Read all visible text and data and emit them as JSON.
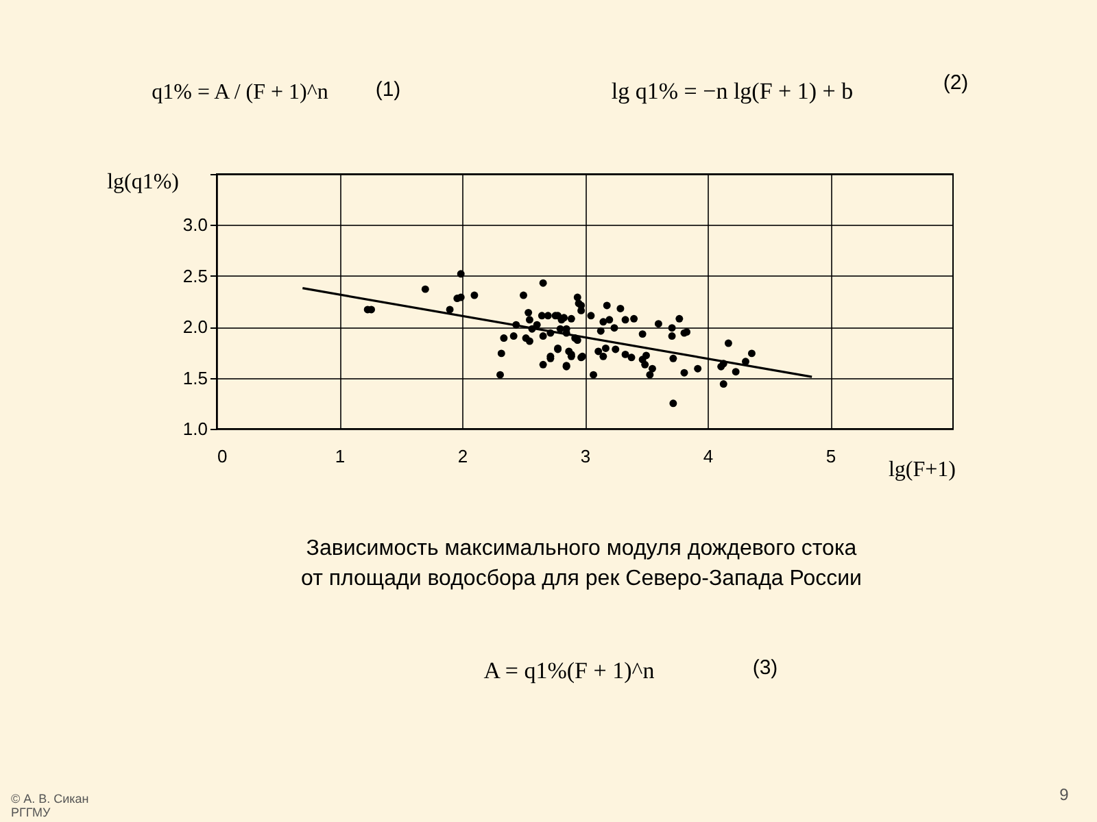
{
  "chart_data": {
    "type": "scatter",
    "title": "Зависимость максимального модуля дождевого стока от площади водосбора для рек Северо-Запада России",
    "xlabel": "lg(F+1)",
    "ylabel": "lg(q1%)",
    "xlim": [
      0,
      6
    ],
    "xticks": [
      0,
      1,
      2,
      3,
      4,
      5
    ],
    "ylim": [
      1.0,
      3.5
    ],
    "yticks": [
      {
        "value": 1.0,
        "label": "1.0"
      },
      {
        "value": 1.5,
        "label": "1.5"
      },
      {
        "value": 2.0,
        "label": "2.0"
      },
      {
        "value": 2.5,
        "label": "2.5"
      },
      {
        "value": 3.0,
        "label": "3.0"
      },
      {
        "value": 3.5,
        "label": null
      }
    ],
    "grid": true,
    "marker": "circle",
    "series": [
      {
        "color": "#000000",
        "x": [
          1.23,
          1.26,
          1.7,
          1.9,
          1.96,
          1.99,
          1.99,
          2.1,
          2.31,
          2.32,
          2.34,
          2.42,
          2.5,
          2.44,
          2.54,
          2.55,
          2.57,
          2.52,
          2.55,
          2.66,
          2.65,
          2.7,
          2.76,
          2.61,
          2.66,
          2.72,
          2.66,
          2.72,
          2.78,
          2.81,
          2.85,
          2.87,
          2.85,
          2.89,
          2.94,
          2.95,
          2.92,
          2.98,
          3.05,
          3.07,
          3.11,
          2.97,
          2.97,
          2.78,
          2.83,
          2.89,
          2.8,
          2.85,
          2.94,
          2.89,
          2.72,
          2.78,
          2.85,
          2.97,
          3.15,
          3.17,
          3.13,
          3.15,
          3.2,
          3.18,
          3.24,
          3.25,
          3.29,
          3.33,
          3.4,
          3.33,
          3.38,
          3.47,
          3.47,
          3.5,
          3.49,
          3.55,
          3.53,
          3.6,
          3.71,
          3.71,
          3.77,
          3.72,
          3.81,
          3.83,
          3.81,
          3.92,
          3.72,
          4.17,
          4.11,
          4.13,
          4.13,
          4.23,
          4.31,
          4.36
        ],
        "values": [
          2.17,
          2.17,
          2.37,
          2.17,
          2.28,
          2.29,
          2.52,
          2.31,
          1.53,
          1.74,
          1.89,
          1.91,
          2.31,
          2.02,
          2.14,
          2.07,
          1.98,
          1.89,
          1.86,
          2.43,
          2.11,
          2.11,
          2.11,
          2.02,
          1.91,
          1.94,
          1.63,
          1.71,
          1.78,
          2.07,
          1.98,
          1.76,
          1.62,
          1.71,
          2.29,
          2.23,
          1.89,
          1.71,
          2.11,
          1.53,
          1.76,
          2.21,
          2.16,
          2.11,
          2.09,
          2.08,
          1.98,
          1.94,
          1.87,
          1.73,
          1.69,
          1.79,
          1.61,
          1.7,
          1.71,
          1.79,
          1.96,
          2.05,
          2.07,
          2.21,
          1.99,
          1.78,
          2.18,
          2.07,
          2.08,
          1.73,
          1.7,
          1.93,
          1.68,
          1.72,
          1.63,
          1.59,
          1.53,
          2.03,
          1.99,
          1.91,
          2.08,
          1.69,
          1.94,
          1.95,
          1.55,
          1.59,
          1.25,
          1.84,
          1.61,
          1.64,
          1.44,
          1.56,
          1.66,
          1.74
        ]
      },
      {
        "type": "line",
        "marker": "none",
        "color": "#000000",
        "x": [
          0.7,
          4.85
        ],
        "values": [
          2.38,
          1.51
        ]
      }
    ],
    "annotations": [
      "q1% = A / (F + 1)^n",
      "(1)",
      "lg q1% = −n lg(F + 1) + b",
      "(2)",
      "A = q1%(F + 1)^n",
      "(3)",
      "© А. В. Сикан",
      "РГГМУ",
      "9"
    ]
  }
}
